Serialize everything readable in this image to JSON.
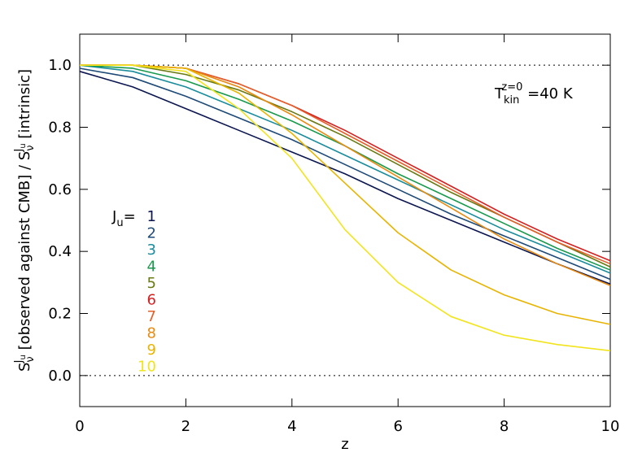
{
  "chart_data": {
    "type": "line",
    "x_label": "z",
    "y_label": {
      "s": "S",
      "sub": "ν",
      "sup": "J",
      "supsub": "u",
      "mid": " [observed against CMB] / ",
      "end": " [intrinsic]"
    },
    "annotation": {
      "t": "T",
      "sub": "kin",
      "sup": "z=0",
      "rest": " =40 K"
    },
    "legend_title": {
      "j": "J",
      "sub": "u",
      "eq": "="
    },
    "x": [
      0,
      1,
      2,
      3,
      4,
      5,
      6,
      7,
      8,
      9,
      10
    ],
    "series": [
      {
        "name": "1",
        "color": "#0b1650",
        "values": [
          0.98,
          0.93,
          0.86,
          0.79,
          0.72,
          0.65,
          0.57,
          0.5,
          0.43,
          0.36,
          0.295
        ]
      },
      {
        "name": "2",
        "color": "#1e4a78",
        "values": [
          0.99,
          0.96,
          0.9,
          0.83,
          0.76,
          0.68,
          0.6,
          0.52,
          0.45,
          0.38,
          0.31
        ]
      },
      {
        "name": "3",
        "color": "#1a8c9c",
        "values": [
          1.0,
          0.98,
          0.93,
          0.86,
          0.79,
          0.71,
          0.63,
          0.55,
          0.47,
          0.4,
          0.33
        ]
      },
      {
        "name": "4",
        "color": "#179a4c",
        "values": [
          1.0,
          0.99,
          0.95,
          0.89,
          0.82,
          0.74,
          0.65,
          0.57,
          0.49,
          0.41,
          0.34
        ]
      },
      {
        "name": "5",
        "color": "#6a7a12",
        "values": [
          1.0,
          1.0,
          0.97,
          0.92,
          0.85,
          0.77,
          0.68,
          0.59,
          0.51,
          0.43,
          0.35
        ]
      },
      {
        "name": "6",
        "color": "#d42020",
        "values": [
          1.0,
          1.0,
          0.99,
          0.94,
          0.87,
          0.79,
          0.7,
          0.61,
          0.52,
          0.44,
          0.37
        ]
      },
      {
        "name": "7",
        "color": "#e4602a",
        "values": [
          1.0,
          1.0,
          0.99,
          0.94,
          0.87,
          0.78,
          0.69,
          0.6,
          0.51,
          0.43,
          0.36
        ]
      },
      {
        "name": "8",
        "color": "#e88a10",
        "values": [
          1.0,
          1.0,
          0.99,
          0.93,
          0.84,
          0.74,
          0.64,
          0.54,
          0.44,
          0.36,
          0.29
        ]
      },
      {
        "name": "9",
        "color": "#e8b400",
        "values": [
          1.0,
          1.0,
          0.99,
          0.91,
          0.78,
          0.62,
          0.46,
          0.34,
          0.26,
          0.2,
          0.165
        ]
      },
      {
        "name": "10",
        "color": "#f2e41c",
        "values": [
          1.0,
          1.0,
          0.98,
          0.86,
          0.7,
          0.47,
          0.3,
          0.19,
          0.13,
          0.1,
          0.08
        ]
      }
    ],
    "hlines": [
      1,
      0
    ],
    "xlim": [
      0,
      10
    ],
    "ylim": [
      -0.1,
      1.1
    ],
    "xticks": [
      0,
      2,
      4,
      6,
      8,
      10
    ],
    "yticks": [
      {
        "value": 0,
        "label": "0.0"
      },
      0.2,
      0.4,
      0.6,
      0.8,
      {
        "value": 1,
        "label": "1.0"
      }
    ]
  }
}
